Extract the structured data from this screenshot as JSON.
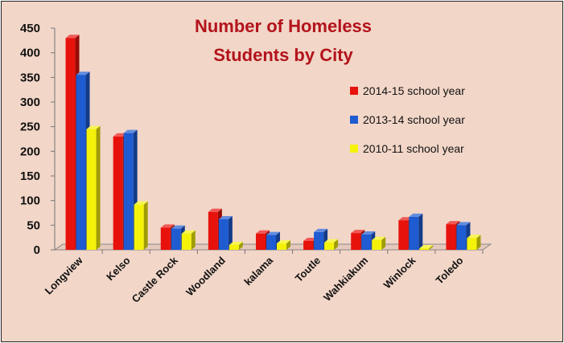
{
  "chart_data": {
    "type": "bar",
    "title_lines": [
      "Number of Homeless",
      "Students by City"
    ],
    "categories": [
      "Longview",
      "Kelso",
      "Castle Rock",
      "Woodland",
      "kalama",
      "Toutle",
      "Wahkiakum",
      "Winlock",
      "Toledo"
    ],
    "series": [
      {
        "name": "2014-15 school year",
        "color": "#e8120c",
        "values": [
          430,
          230,
          45,
          77,
          33,
          18,
          34,
          60,
          52
        ]
      },
      {
        "name": "2013-14 school year",
        "color": "#1f5bd1",
        "values": [
          355,
          237,
          43,
          62,
          30,
          36,
          31,
          67,
          50
        ]
      },
      {
        "name": "2010-11 school year",
        "color": "#f5f20a",
        "values": [
          245,
          92,
          33,
          10,
          13,
          15,
          20,
          3,
          24
        ]
      }
    ],
    "ylim": [
      0,
      450
    ],
    "yticks": [
      0,
      50,
      100,
      150,
      200,
      250,
      300,
      350,
      400,
      450
    ],
    "legend_position": "right",
    "grid": false
  }
}
